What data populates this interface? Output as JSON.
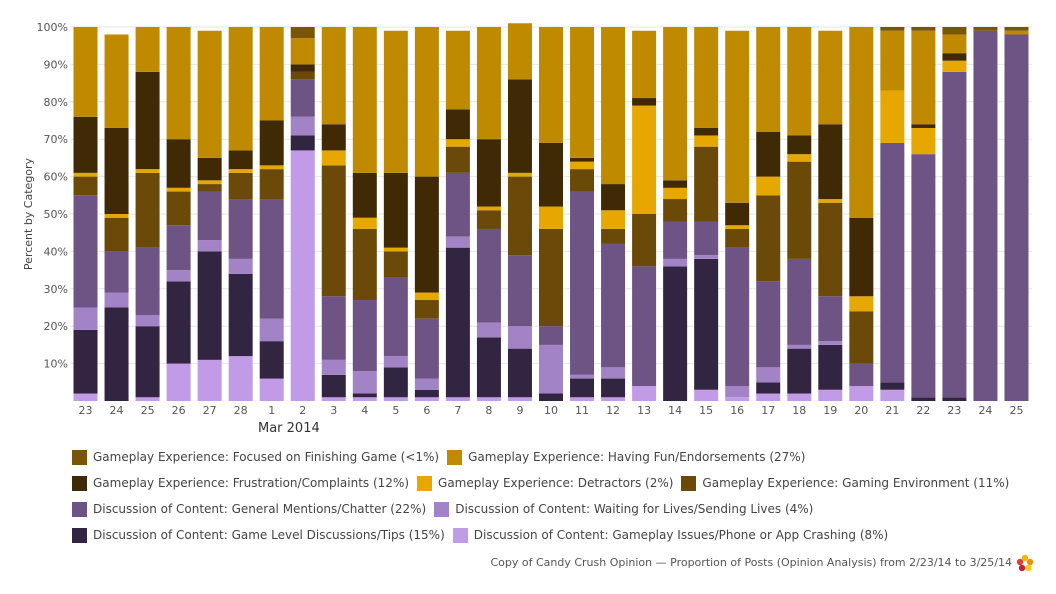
{
  "chart_data": {
    "type": "bar",
    "stacked": true,
    "ylabel": "Percent by Category",
    "ylim": [
      0,
      100
    ],
    "yticks": [
      "10%",
      "20%",
      "30%",
      "40%",
      "50%",
      "60%",
      "70%",
      "80%",
      "90%",
      "100%"
    ],
    "month_label": "Mar 2014",
    "categories": [
      "23",
      "24",
      "25",
      "26",
      "27",
      "28",
      "1",
      "2",
      "3",
      "4",
      "5",
      "6",
      "7",
      "8",
      "9",
      "10",
      "11",
      "12",
      "13",
      "14",
      "15",
      "16",
      "17",
      "18",
      "19",
      "20",
      "21",
      "22",
      "23",
      "24",
      "25"
    ],
    "series": [
      {
        "name": "Discussion of Content: Gameplay Issues/Phone or App Crashing (8%)",
        "color": "#c29be6",
        "values": [
          2,
          0,
          1,
          10,
          11,
          12,
          6,
          67,
          1,
          1,
          1,
          1,
          1,
          1,
          1,
          0,
          1,
          1,
          4,
          0,
          3,
          1,
          2,
          2,
          3,
          4,
          3,
          0,
          0,
          0,
          0
        ]
      },
      {
        "name": "Discussion of Content: Game Level Discussions/Tips (15%)",
        "color": "#322542",
        "values": [
          17,
          25,
          19,
          22,
          29,
          22,
          10,
          4,
          6,
          1,
          8,
          2,
          40,
          16,
          13,
          2,
          5,
          5,
          0,
          36,
          35,
          0,
          3,
          12,
          12,
          0,
          2,
          1,
          1,
          0,
          0
        ]
      },
      {
        "name": "Discussion of Content: Waiting for Lives/Sending Lives (4%)",
        "color": "#a283c6",
        "values": [
          6,
          4,
          3,
          3,
          3,
          4,
          6,
          5,
          4,
          6,
          3,
          3,
          3,
          4,
          6,
          13,
          1,
          3,
          0,
          2,
          1,
          3,
          4,
          1,
          1,
          0,
          0,
          0,
          0,
          0,
          0
        ]
      },
      {
        "name": "Discussion of Content: General Mentions/Chatter (22%)",
        "color": "#6d5484",
        "values": [
          30,
          11,
          18,
          12,
          13,
          16,
          32,
          10,
          17,
          19,
          21,
          16,
          17,
          25,
          19,
          5,
          49,
          33,
          32,
          10,
          9,
          37,
          23,
          23,
          12,
          6,
          64,
          65,
          87,
          99,
          98
        ]
      },
      {
        "name": "Gameplay Experience: Gaming Environment (11%)",
        "color": "#6b4a09",
        "values": [
          5,
          9,
          20,
          9,
          2,
          7,
          8,
          2,
          35,
          19,
          7,
          5,
          7,
          5,
          21,
          26,
          6,
          4,
          14,
          6,
          20,
          5,
          23,
          26,
          25,
          14,
          0,
          0,
          0,
          0,
          0
        ]
      },
      {
        "name": "Gameplay Experience: Detractors (2%)",
        "color": "#e6a700",
        "values": [
          1,
          1,
          1,
          1,
          1,
          1,
          1,
          0,
          4,
          3,
          1,
          2,
          2,
          1,
          1,
          6,
          2,
          5,
          29,
          3,
          3,
          1,
          5,
          2,
          1,
          4,
          14,
          7,
          3,
          0,
          0
        ]
      },
      {
        "name": "Gameplay Experience: Frustration/Complaints (12%)",
        "color": "#3f2a05",
        "values": [
          15,
          23,
          26,
          13,
          6,
          5,
          12,
          2,
          7,
          12,
          20,
          31,
          8,
          18,
          25,
          17,
          1,
          7,
          2,
          2,
          2,
          6,
          12,
          5,
          20,
          21,
          0,
          1,
          2,
          0,
          0
        ]
      },
      {
        "name": "Gameplay Experience: Having Fun/Endorsements (27%)",
        "color": "#bf8a00",
        "values": [
          24,
          25,
          12,
          30,
          34,
          33,
          25,
          7,
          26,
          39,
          38,
          40,
          21,
          30,
          15,
          31,
          35,
          42,
          18,
          41,
          27,
          46,
          28,
          29,
          25,
          51,
          16,
          25,
          5,
          0,
          1
        ]
      },
      {
        "name": "Gameplay Experience: Focused on Finishing Game (<1%)",
        "color": "#7a5505",
        "values": [
          0,
          0,
          0,
          0,
          0,
          0,
          0,
          3,
          0,
          0,
          0,
          0,
          0,
          0,
          0,
          0,
          0,
          0,
          0,
          0,
          0,
          0,
          0,
          0,
          0,
          0,
          1,
          1,
          2,
          1,
          1
        ]
      }
    ]
  },
  "legend": {
    "rows": [
      [
        {
          "label": "Gameplay Experience: Focused on Finishing Game (<1%)",
          "color": "#7a5505"
        },
        {
          "label": "Gameplay Experience: Having Fun/Endorsements (27%)",
          "color": "#bf8a00"
        }
      ],
      [
        {
          "label": "Gameplay Experience: Frustration/Complaints (12%)",
          "color": "#3f2a05"
        },
        {
          "label": "Gameplay Experience: Detractors (2%)",
          "color": "#e6a700"
        },
        {
          "label": "Gameplay Experience: Gaming Environment (11%)",
          "color": "#6b4a09"
        }
      ],
      [
        {
          "label": "Discussion of Content: General Mentions/Chatter (22%)",
          "color": "#6d5484"
        },
        {
          "label": "Discussion of Content: Waiting for Lives/Sending Lives (4%)",
          "color": "#a283c6"
        }
      ],
      [
        {
          "label": "Discussion of Content: Game Level Discussions/Tips (15%)",
          "color": "#322542"
        },
        {
          "label": "Discussion of Content: Gameplay Issues/Phone or App Crashing (8%)",
          "color": "#c29be6"
        }
      ]
    ]
  },
  "footer": {
    "text": "Copy of Candy Crush Opinion — Proportion of Posts (Opinion Analysis) from 2/23/14 to 3/25/14",
    "logo_icon": "flower-logo-icon"
  }
}
